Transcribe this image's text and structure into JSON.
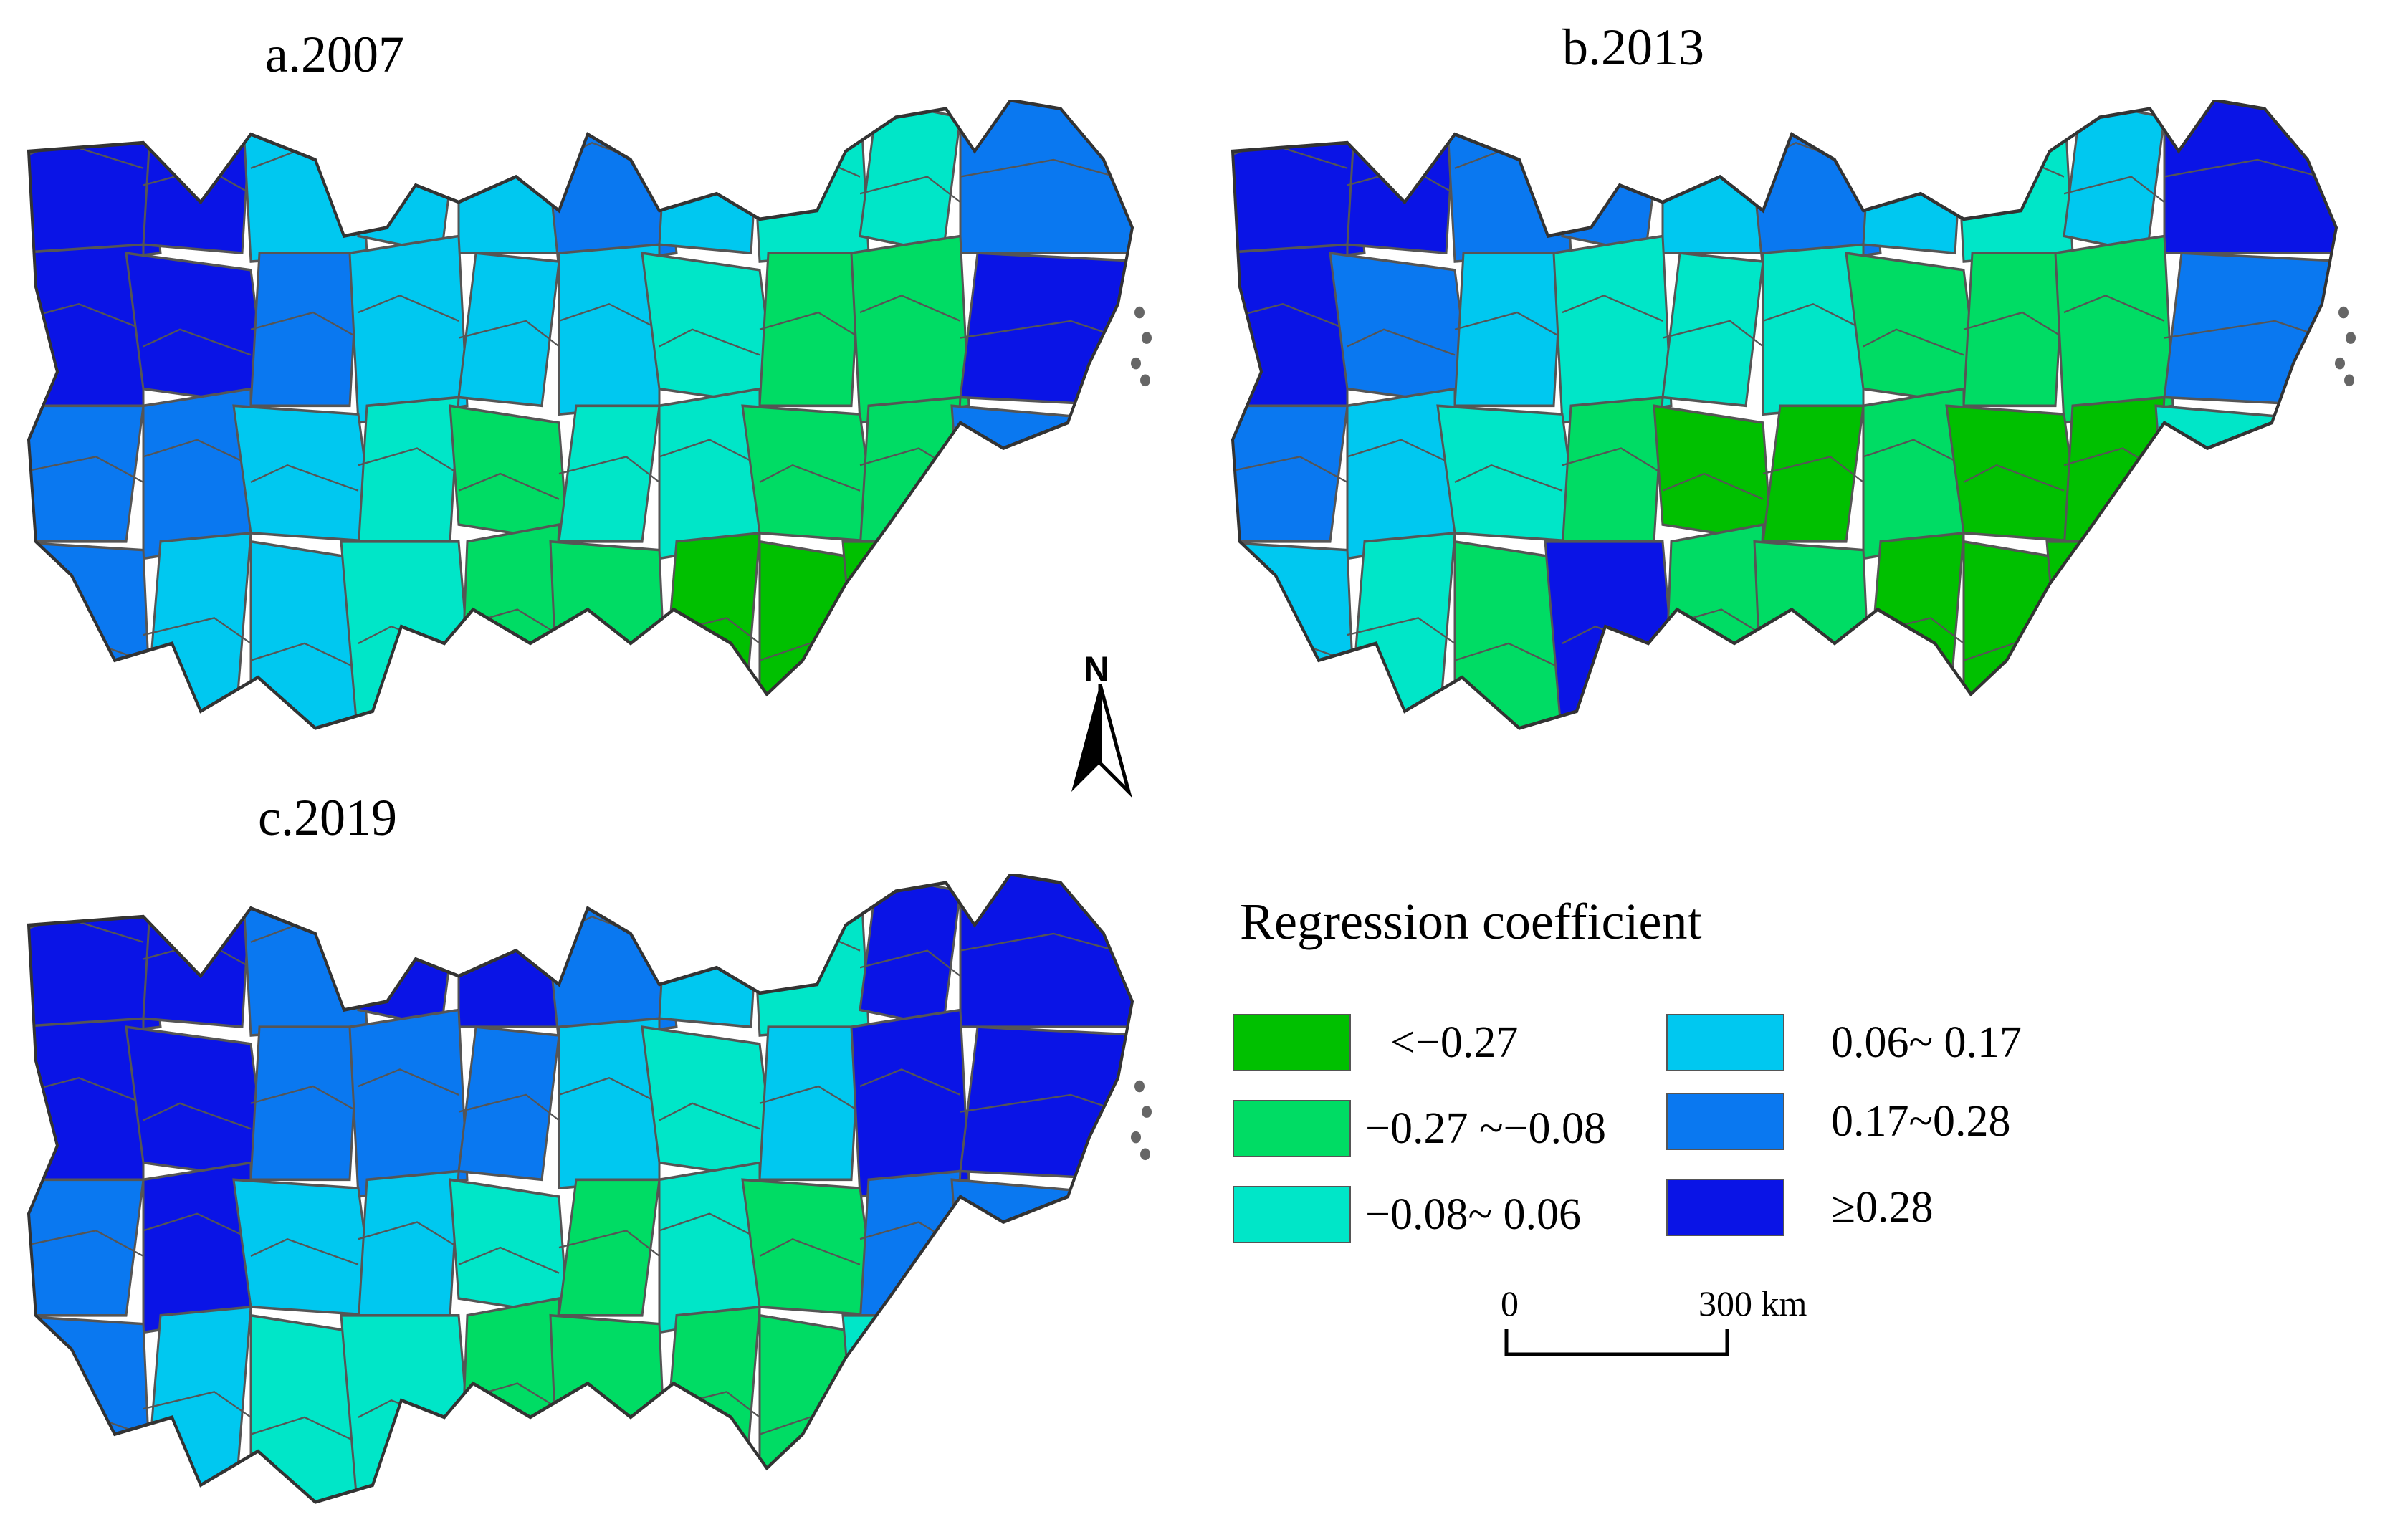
{
  "panels": [
    {
      "id": "a",
      "title": "a.2007"
    },
    {
      "id": "b",
      "title": "b.2013"
    },
    {
      "id": "c",
      "title": "c.2019"
    }
  ],
  "north_arrow": {
    "label": "N"
  },
  "legend": {
    "title": "Regression coefficient",
    "classes": [
      {
        "label": "<−0.27",
        "color": "#00c000"
      },
      {
        "label": "−0.27 ~−0.08",
        "color": "#00dc64"
      },
      {
        "label": "−0.08~ 0.06",
        "color": "#00e6c8"
      },
      {
        "label": "0.06~ 0.17",
        "color": "#00c8f0"
      },
      {
        "label": "0.17~0.28",
        "color": "#0a78f0"
      },
      {
        "label": "≥0.28",
        "color": "#0a14e6"
      }
    ]
  },
  "scalebar": {
    "start": "0",
    "end": "300",
    "unit": "km"
  },
  "colors": {
    "boundary": "#555555",
    "outline": "#333333"
  }
}
